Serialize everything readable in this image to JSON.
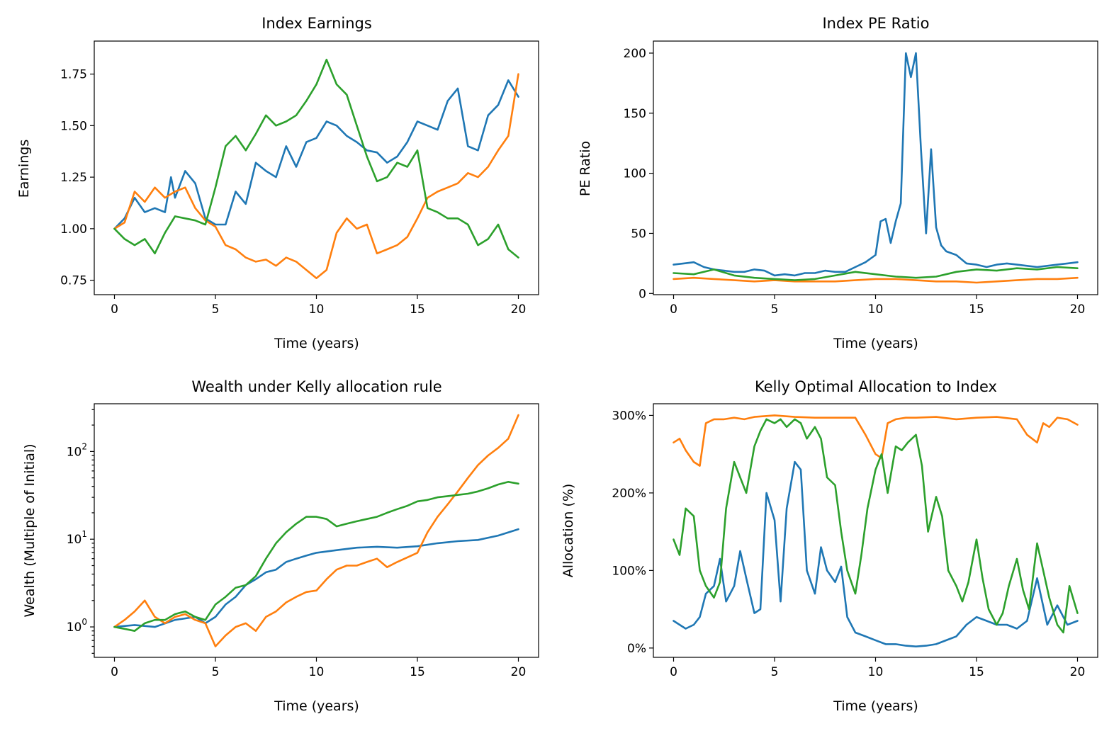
{
  "colors": {
    "series1": "#1f77b4",
    "series2": "#ff7f0e",
    "series3": "#2ca02c"
  },
  "chart_data": [
    {
      "type": "line",
      "title": "Index Earnings",
      "xlabel": "Time (years)",
      "ylabel": "Earnings",
      "xlim": [
        -1,
        21
      ],
      "ylim": [
        0.68,
        1.91
      ],
      "xticks": [
        0,
        5,
        10,
        15,
        20
      ],
      "xtick_labels": [
        "0",
        "5",
        "10",
        "15",
        "20"
      ],
      "yticks": [
        0.75,
        1.0,
        1.25,
        1.5,
        1.75
      ],
      "ytick_labels": [
        "0.75",
        "1.00",
        "1.25",
        "1.50",
        "1.75"
      ],
      "grid": false,
      "series": [
        {
          "color": "#1f77b4",
          "x": [
            0,
            0.5,
            1,
            1.5,
            2,
            2.5,
            2.8,
            3,
            3.5,
            4,
            4.5,
            5,
            5.5,
            6,
            6.5,
            7,
            7.5,
            8,
            8.5,
            9,
            9.5,
            10,
            10.5,
            11,
            11.5,
            12,
            12.5,
            13,
            13.5,
            14,
            14.5,
            15,
            15.5,
            16,
            16.5,
            17,
            17.5,
            18,
            18.5,
            19,
            19.5,
            20
          ],
          "y": [
            1.0,
            1.05,
            1.15,
            1.08,
            1.1,
            1.08,
            1.25,
            1.15,
            1.28,
            1.22,
            1.05,
            1.02,
            1.02,
            1.18,
            1.12,
            1.32,
            1.28,
            1.25,
            1.4,
            1.3,
            1.42,
            1.44,
            1.52,
            1.5,
            1.45,
            1.42,
            1.38,
            1.37,
            1.32,
            1.35,
            1.42,
            1.52,
            1.5,
            1.48,
            1.62,
            1.68,
            1.4,
            1.38,
            1.55,
            1.6,
            1.72,
            1.64
          ]
        },
        {
          "color": "#ff7f0e",
          "x": [
            0,
            0.5,
            1,
            1.5,
            2,
            2.5,
            3,
            3.5,
            4,
            4.5,
            5,
            5.5,
            6,
            6.5,
            7,
            7.5,
            8,
            8.5,
            9,
            9.5,
            10,
            10.5,
            11,
            11.5,
            12,
            12.5,
            13,
            13.5,
            14,
            14.5,
            15,
            15.5,
            16,
            16.5,
            17,
            17.5,
            18,
            18.5,
            19,
            19.5,
            20
          ],
          "y": [
            1.0,
            1.03,
            1.18,
            1.13,
            1.2,
            1.15,
            1.18,
            1.2,
            1.1,
            1.04,
            1.01,
            0.92,
            0.9,
            0.86,
            0.84,
            0.85,
            0.82,
            0.86,
            0.84,
            0.8,
            0.76,
            0.8,
            0.98,
            1.05,
            1.0,
            1.02,
            0.88,
            0.9,
            0.92,
            0.96,
            1.05,
            1.15,
            1.18,
            1.2,
            1.22,
            1.27,
            1.25,
            1.3,
            1.38,
            1.45,
            1.75
          ]
        },
        {
          "color": "#2ca02c",
          "x": [
            0,
            0.5,
            1,
            1.5,
            2,
            2.5,
            3,
            3.5,
            4,
            4.5,
            5,
            5.5,
            6,
            6.5,
            7,
            7.5,
            8,
            8.5,
            9,
            9.5,
            10,
            10.5,
            11,
            11.5,
            12,
            12.5,
            13,
            13.5,
            14,
            14.5,
            15,
            15.5,
            16,
            16.5,
            17,
            17.5,
            18,
            18.5,
            19,
            19.5,
            20
          ],
          "y": [
            1.0,
            0.95,
            0.92,
            0.95,
            0.88,
            0.98,
            1.06,
            1.05,
            1.04,
            1.02,
            1.2,
            1.4,
            1.45,
            1.38,
            1.46,
            1.55,
            1.5,
            1.52,
            1.55,
            1.62,
            1.7,
            1.82,
            1.7,
            1.65,
            1.5,
            1.35,
            1.23,
            1.25,
            1.32,
            1.3,
            1.38,
            1.1,
            1.08,
            1.05,
            1.05,
            1.02,
            0.92,
            0.95,
            1.02,
            0.9,
            0.86
          ]
        }
      ]
    },
    {
      "type": "line",
      "title": "Index PE Ratio",
      "xlabel": "Time (years)",
      "ylabel": "PE Ratio",
      "xlim": [
        -1,
        21
      ],
      "ylim": [
        -1,
        210
      ],
      "xticks": [
        0,
        5,
        10,
        15,
        20
      ],
      "xtick_labels": [
        "0",
        "5",
        "10",
        "15",
        "20"
      ],
      "yticks": [
        0,
        50,
        100,
        150,
        200
      ],
      "ytick_labels": [
        "0",
        "50",
        "100",
        "150",
        "200"
      ],
      "grid": false,
      "series": [
        {
          "color": "#1f77b4",
          "x": [
            0,
            0.5,
            1,
            1.5,
            2,
            2.5,
            3,
            3.5,
            4,
            4.5,
            5,
            5.5,
            6,
            6.5,
            7,
            7.5,
            8,
            8.5,
            9,
            9.5,
            10,
            10.25,
            10.5,
            10.75,
            11,
            11.25,
            11.5,
            11.75,
            12,
            12.25,
            12.5,
            12.75,
            13,
            13.25,
            13.5,
            14,
            14.5,
            15,
            15.5,
            16,
            16.5,
            17,
            17.5,
            18,
            18.5,
            19,
            19.5,
            20
          ],
          "y": [
            24,
            25,
            26,
            22,
            20,
            19,
            18,
            18,
            20,
            19,
            15,
            16,
            15,
            17,
            17,
            19,
            18,
            18,
            22,
            26,
            32,
            60,
            62,
            42,
            60,
            75,
            200,
            180,
            200,
            120,
            50,
            120,
            55,
            40,
            35,
            32,
            25,
            24,
            22,
            24,
            25,
            24,
            23,
            22,
            23,
            24,
            25,
            26
          ]
        },
        {
          "color": "#ff7f0e",
          "x": [
            0,
            1,
            2,
            3,
            4,
            5,
            6,
            7,
            8,
            9,
            10,
            11,
            12,
            13,
            14,
            15,
            16,
            17,
            18,
            19,
            20
          ],
          "y": [
            12,
            13,
            12,
            11,
            10,
            11,
            10,
            10,
            10,
            11,
            12,
            12,
            11,
            10,
            10,
            9,
            10,
            11,
            12,
            12,
            13
          ]
        },
        {
          "color": "#2ca02c",
          "x": [
            0,
            1,
            2,
            3,
            4,
            5,
            6,
            7,
            8,
            9,
            10,
            11,
            12,
            13,
            14,
            15,
            16,
            17,
            18,
            19,
            20
          ],
          "y": [
            17,
            16,
            20,
            15,
            13,
            12,
            11,
            12,
            15,
            18,
            16,
            14,
            13,
            14,
            18,
            20,
            19,
            21,
            20,
            22,
            21
          ]
        }
      ]
    },
    {
      "type": "line",
      "title": "Wealth under Kelly allocation rule",
      "xlabel": "Time (years)",
      "ylabel": "Wealth (Multiple of Initial)",
      "yscale": "log",
      "xlim": [
        -1,
        21
      ],
      "ylim": [
        0.45,
        350
      ],
      "xticks": [
        0,
        5,
        10,
        15,
        20
      ],
      "xtick_labels": [
        "0",
        "5",
        "10",
        "15",
        "20"
      ],
      "yticks": [
        1,
        10,
        100
      ],
      "ytick_base": "10",
      "ytick_exponents": [
        "0",
        "1",
        "2"
      ],
      "grid": false,
      "series": [
        {
          "color": "#1f77b4",
          "x": [
            0,
            1,
            2,
            3,
            4,
            4.5,
            5,
            5.5,
            6,
            6.5,
            7,
            7.5,
            8,
            8.5,
            9,
            9.5,
            10,
            11,
            12,
            13,
            14,
            15,
            16,
            17,
            18,
            19,
            20
          ],
          "y": [
            1.0,
            1.05,
            1.0,
            1.2,
            1.3,
            1.1,
            1.3,
            1.8,
            2.2,
            3.0,
            3.5,
            4.2,
            4.5,
            5.5,
            6.0,
            6.5,
            7.0,
            7.5,
            8.0,
            8.2,
            8.0,
            8.3,
            9.0,
            9.5,
            9.8,
            11,
            13
          ]
        },
        {
          "color": "#ff7f0e",
          "x": [
            0,
            0.5,
            1,
            1.5,
            2,
            2.5,
            3,
            3.5,
            4,
            4.5,
            5,
            5.5,
            6,
            6.5,
            7,
            7.5,
            8,
            8.5,
            9,
            9.5,
            10,
            10.5,
            11,
            11.5,
            12,
            12.5,
            13,
            13.5,
            14,
            14.5,
            15,
            15.5,
            16,
            16.5,
            17,
            17.5,
            18,
            18.5,
            19,
            19.5,
            20
          ],
          "y": [
            1.0,
            1.2,
            1.5,
            2.0,
            1.3,
            1.1,
            1.3,
            1.4,
            1.2,
            1.1,
            0.6,
            0.8,
            1.0,
            1.1,
            0.9,
            1.3,
            1.5,
            1.9,
            2.2,
            2.5,
            2.6,
            3.5,
            4.5,
            5.0,
            5.0,
            5.5,
            6.0,
            4.8,
            5.5,
            6.2,
            7.0,
            12,
            18,
            25,
            35,
            50,
            70,
            90,
            110,
            140,
            260
          ]
        },
        {
          "color": "#2ca02c",
          "x": [
            0,
            0.5,
            1,
            1.5,
            2,
            2.5,
            3,
            3.5,
            4,
            4.5,
            5,
            5.5,
            6,
            6.5,
            7,
            7.5,
            8,
            8.5,
            9,
            9.5,
            10,
            10.5,
            11,
            11.5,
            12,
            12.5,
            13,
            13.5,
            14,
            14.5,
            15,
            15.5,
            16,
            16.5,
            17,
            17.5,
            18,
            18.5,
            19,
            19.5,
            20
          ],
          "y": [
            1.0,
            0.95,
            0.9,
            1.1,
            1.2,
            1.2,
            1.4,
            1.5,
            1.3,
            1.2,
            1.8,
            2.2,
            2.8,
            3.0,
            3.8,
            6.0,
            9.0,
            12,
            15,
            18,
            18,
            17,
            14,
            15,
            16,
            17,
            18,
            20,
            22,
            24,
            27,
            28,
            30,
            31,
            32,
            33,
            35,
            38,
            42,
            45,
            43
          ]
        }
      ]
    },
    {
      "type": "line",
      "title": "Kelly Optimal Allocation to Index",
      "xlabel": "Time (years)",
      "ylabel": "Allocation (%)",
      "xlim": [
        -1,
        21
      ],
      "ylim": [
        -0.12,
        3.15
      ],
      "xticks": [
        0,
        5,
        10,
        15,
        20
      ],
      "xtick_labels": [
        "0",
        "5",
        "10",
        "15",
        "20"
      ],
      "yticks": [
        0,
        1,
        2,
        3
      ],
      "ytick_labels": [
        "0%",
        "100%",
        "200%",
        "300%"
      ],
      "grid": false,
      "series": [
        {
          "color": "#1f77b4",
          "x": [
            0,
            0.3,
            0.6,
            1,
            1.3,
            1.6,
            2,
            2.3,
            2.6,
            3,
            3.3,
            3.6,
            4,
            4.3,
            4.6,
            5,
            5.3,
            5.6,
            6,
            6.3,
            6.6,
            7,
            7.3,
            7.6,
            8,
            8.3,
            8.6,
            9,
            9.5,
            10,
            10.5,
            11,
            11.5,
            12,
            12.5,
            13,
            13.5,
            14,
            14.5,
            15,
            15.5,
            16,
            16.5,
            17,
            17.5,
            18,
            18.5,
            19,
            19.5,
            20
          ],
          "y": [
            0.35,
            0.3,
            0.25,
            0.3,
            0.4,
            0.7,
            0.8,
            1.15,
            0.6,
            0.8,
            1.25,
            0.9,
            0.45,
            0.5,
            2.0,
            1.65,
            0.6,
            1.8,
            2.4,
            2.3,
            1.0,
            0.7,
            1.3,
            1.0,
            0.85,
            1.05,
            0.4,
            0.2,
            0.15,
            0.1,
            0.05,
            0.05,
            0.03,
            0.02,
            0.03,
            0.05,
            0.1,
            0.15,
            0.3,
            0.4,
            0.35,
            0.3,
            0.3,
            0.25,
            0.35,
            0.9,
            0.3,
            0.55,
            0.3,
            0.35
          ]
        },
        {
          "color": "#ff7f0e",
          "x": [
            0,
            0.3,
            0.6,
            1,
            1.3,
            1.6,
            2,
            2.5,
            3,
            3.5,
            4,
            5,
            6,
            7,
            8,
            9,
            9.5,
            10,
            10.3,
            10.6,
            11,
            11.5,
            12,
            13,
            14,
            15,
            16,
            17,
            17.5,
            18,
            18.3,
            18.6,
            19,
            19.5,
            20
          ],
          "y": [
            2.65,
            2.7,
            2.55,
            2.4,
            2.35,
            2.9,
            2.95,
            2.95,
            2.97,
            2.95,
            2.98,
            3.0,
            2.98,
            2.97,
            2.97,
            2.97,
            2.75,
            2.5,
            2.45,
            2.9,
            2.95,
            2.97,
            2.97,
            2.98,
            2.95,
            2.97,
            2.98,
            2.95,
            2.75,
            2.65,
            2.9,
            2.85,
            2.97,
            2.95,
            2.88
          ]
        },
        {
          "color": "#2ca02c",
          "x": [
            0,
            0.3,
            0.6,
            1,
            1.3,
            1.6,
            2,
            2.3,
            2.6,
            3,
            3.3,
            3.6,
            4,
            4.3,
            4.6,
            5,
            5.3,
            5.6,
            6,
            6.3,
            6.6,
            7,
            7.3,
            7.6,
            8,
            8.3,
            8.6,
            9,
            9.3,
            9.6,
            10,
            10.3,
            10.6,
            11,
            11.3,
            11.6,
            12,
            12.3,
            12.6,
            13,
            13.3,
            13.6,
            14,
            14.3,
            14.6,
            15,
            15.3,
            15.6,
            16,
            16.3,
            16.6,
            17,
            17.3,
            17.6,
            18,
            18.3,
            18.6,
            19,
            19.3,
            19.6,
            20
          ],
          "y": [
            1.4,
            1.2,
            1.8,
            1.7,
            1.0,
            0.8,
            0.65,
            0.85,
            1.8,
            2.4,
            2.2,
            2.0,
            2.6,
            2.8,
            2.95,
            2.9,
            2.95,
            2.85,
            2.95,
            2.9,
            2.7,
            2.85,
            2.7,
            2.2,
            2.1,
            1.5,
            1.0,
            0.7,
            1.2,
            1.8,
            2.3,
            2.5,
            2.0,
            2.6,
            2.55,
            2.65,
            2.75,
            2.35,
            1.5,
            1.95,
            1.7,
            1.0,
            0.8,
            0.6,
            0.85,
            1.4,
            0.9,
            0.5,
            0.3,
            0.45,
            0.8,
            1.15,
            0.75,
            0.5,
            1.35,
            1.0,
            0.65,
            0.3,
            0.2,
            0.8,
            0.45
          ]
        }
      ]
    }
  ]
}
